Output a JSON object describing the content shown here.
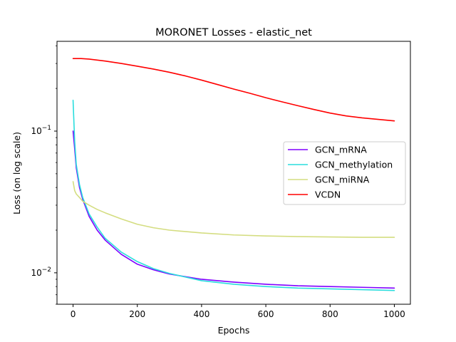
{
  "chart_data": {
    "type": "line",
    "title": "MORONET Losses - elastic_net",
    "xlabel": "Epochs",
    "ylabel": "Loss (on log scale)",
    "yscale": "log",
    "xlim": [
      -50,
      1050
    ],
    "ylim": [
      0.006,
      0.43
    ],
    "xticks": [
      0,
      200,
      400,
      600,
      800,
      1000
    ],
    "xtick_labels": [
      "0",
      "200",
      "400",
      "600",
      "800",
      "1000"
    ],
    "yticks": [
      0.01,
      0.1
    ],
    "ytick_labels": [
      "10^-2",
      "10^-1"
    ],
    "grid": false,
    "legend_position": "center-right",
    "series": [
      {
        "name": "GCN_mRNA",
        "color": "#8000ff",
        "x": [
          0,
          5,
          10,
          20,
          30,
          50,
          75,
          100,
          150,
          200,
          250,
          300,
          400,
          500,
          600,
          700,
          800,
          900,
          1000
        ],
        "y": [
          0.1,
          0.075,
          0.055,
          0.04,
          0.033,
          0.025,
          0.02,
          0.017,
          0.0135,
          0.0115,
          0.0105,
          0.0098,
          0.009,
          0.0086,
          0.0083,
          0.0081,
          0.008,
          0.0079,
          0.0078
        ]
      },
      {
        "name": "GCN_methylation",
        "color": "#2adddd",
        "x": [
          0,
          3,
          5,
          10,
          20,
          30,
          50,
          75,
          100,
          150,
          200,
          250,
          300,
          400,
          500,
          600,
          700,
          800,
          900,
          1000
        ],
        "y": [
          0.165,
          0.11,
          0.085,
          0.058,
          0.042,
          0.034,
          0.026,
          0.021,
          0.0175,
          0.014,
          0.012,
          0.0107,
          0.0099,
          0.0088,
          0.0083,
          0.008,
          0.0078,
          0.0077,
          0.0076,
          0.0075
        ]
      },
      {
        "name": "GCN_miRNA",
        "color": "#d4dd80",
        "x": [
          0,
          5,
          10,
          20,
          30,
          50,
          75,
          100,
          150,
          200,
          250,
          300,
          400,
          500,
          600,
          700,
          800,
          900,
          1000
        ],
        "y": [
          0.044,
          0.038,
          0.036,
          0.034,
          0.032,
          0.03,
          0.028,
          0.0265,
          0.024,
          0.022,
          0.0208,
          0.02,
          0.0191,
          0.0185,
          0.0182,
          0.018,
          0.0179,
          0.0178,
          0.0178
        ]
      },
      {
        "name": "VCDN",
        "color": "#ff0000",
        "x": [
          0,
          25,
          50,
          100,
          150,
          200,
          250,
          300,
          350,
          400,
          450,
          500,
          550,
          600,
          650,
          700,
          750,
          800,
          850,
          900,
          950,
          1000
        ],
        "y": [
          0.325,
          0.325,
          0.322,
          0.312,
          0.3,
          0.287,
          0.274,
          0.26,
          0.245,
          0.229,
          0.213,
          0.198,
          0.185,
          0.172,
          0.161,
          0.151,
          0.142,
          0.134,
          0.128,
          0.124,
          0.121,
          0.118
        ]
      }
    ]
  }
}
